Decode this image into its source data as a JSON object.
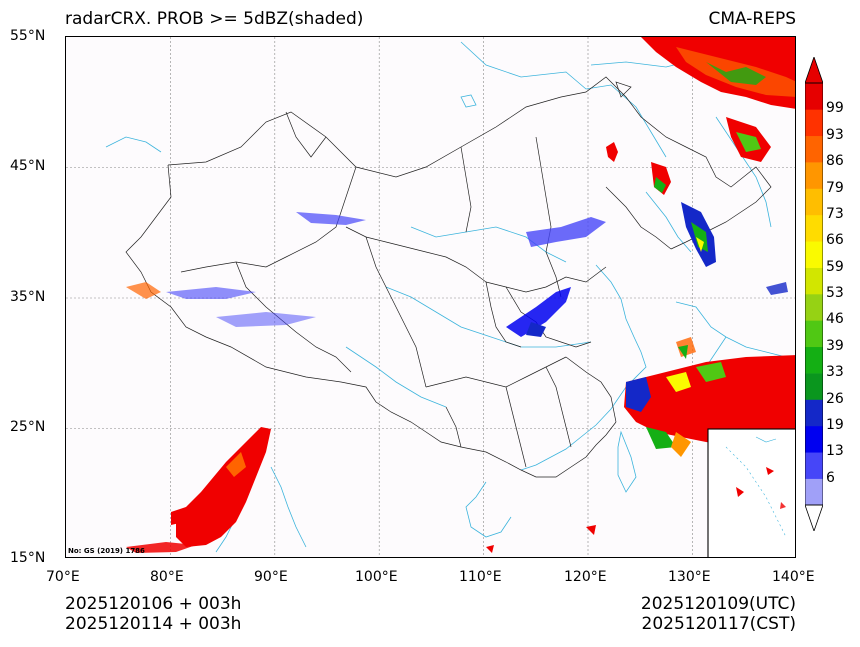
{
  "header": {
    "title_left": "radarCRX. PROB >= 5dBZ(shaded)",
    "title_right": "CMA-REPS"
  },
  "map": {
    "lat_labels": [
      "55°N",
      "45°N",
      "35°N",
      "25°N",
      "15°N"
    ],
    "lon_labels": [
      "70°E",
      "80°E",
      "90°E",
      "100°E",
      "110°E",
      "120°E",
      "130°E",
      "140°E"
    ],
    "note": "No: GS (2019) 1786"
  },
  "colorbar": {
    "labels": [
      "99",
      "93",
      "86",
      "79",
      "73",
      "66",
      "59",
      "53",
      "46",
      "39",
      "33",
      "26",
      "19",
      "13",
      "6"
    ],
    "colors": [
      "#a0a0f8",
      "#4646f8",
      "#0000f0",
      "#1428c8",
      "#0a961e",
      "#14af14",
      "#50c814",
      "#96d214",
      "#d2e600",
      "#fafa00",
      "#ffdc00",
      "#ffbe00",
      "#ff9600",
      "#ff6400",
      "#ff3200",
      "#e60000"
    ],
    "over_color": "#e60000",
    "under_color": "#ffffff"
  },
  "footer": {
    "left_line1": "2025120106  +  003h",
    "left_line2": "2025120114  +  003h",
    "right_line1": "2025120109(UTC)",
    "right_line2": "2025120117(CST)"
  },
  "palette": {
    "gridline": "#888888",
    "coast": "#3cb4dc",
    "border": "#222222",
    "prob_red": "#f00000"
  }
}
